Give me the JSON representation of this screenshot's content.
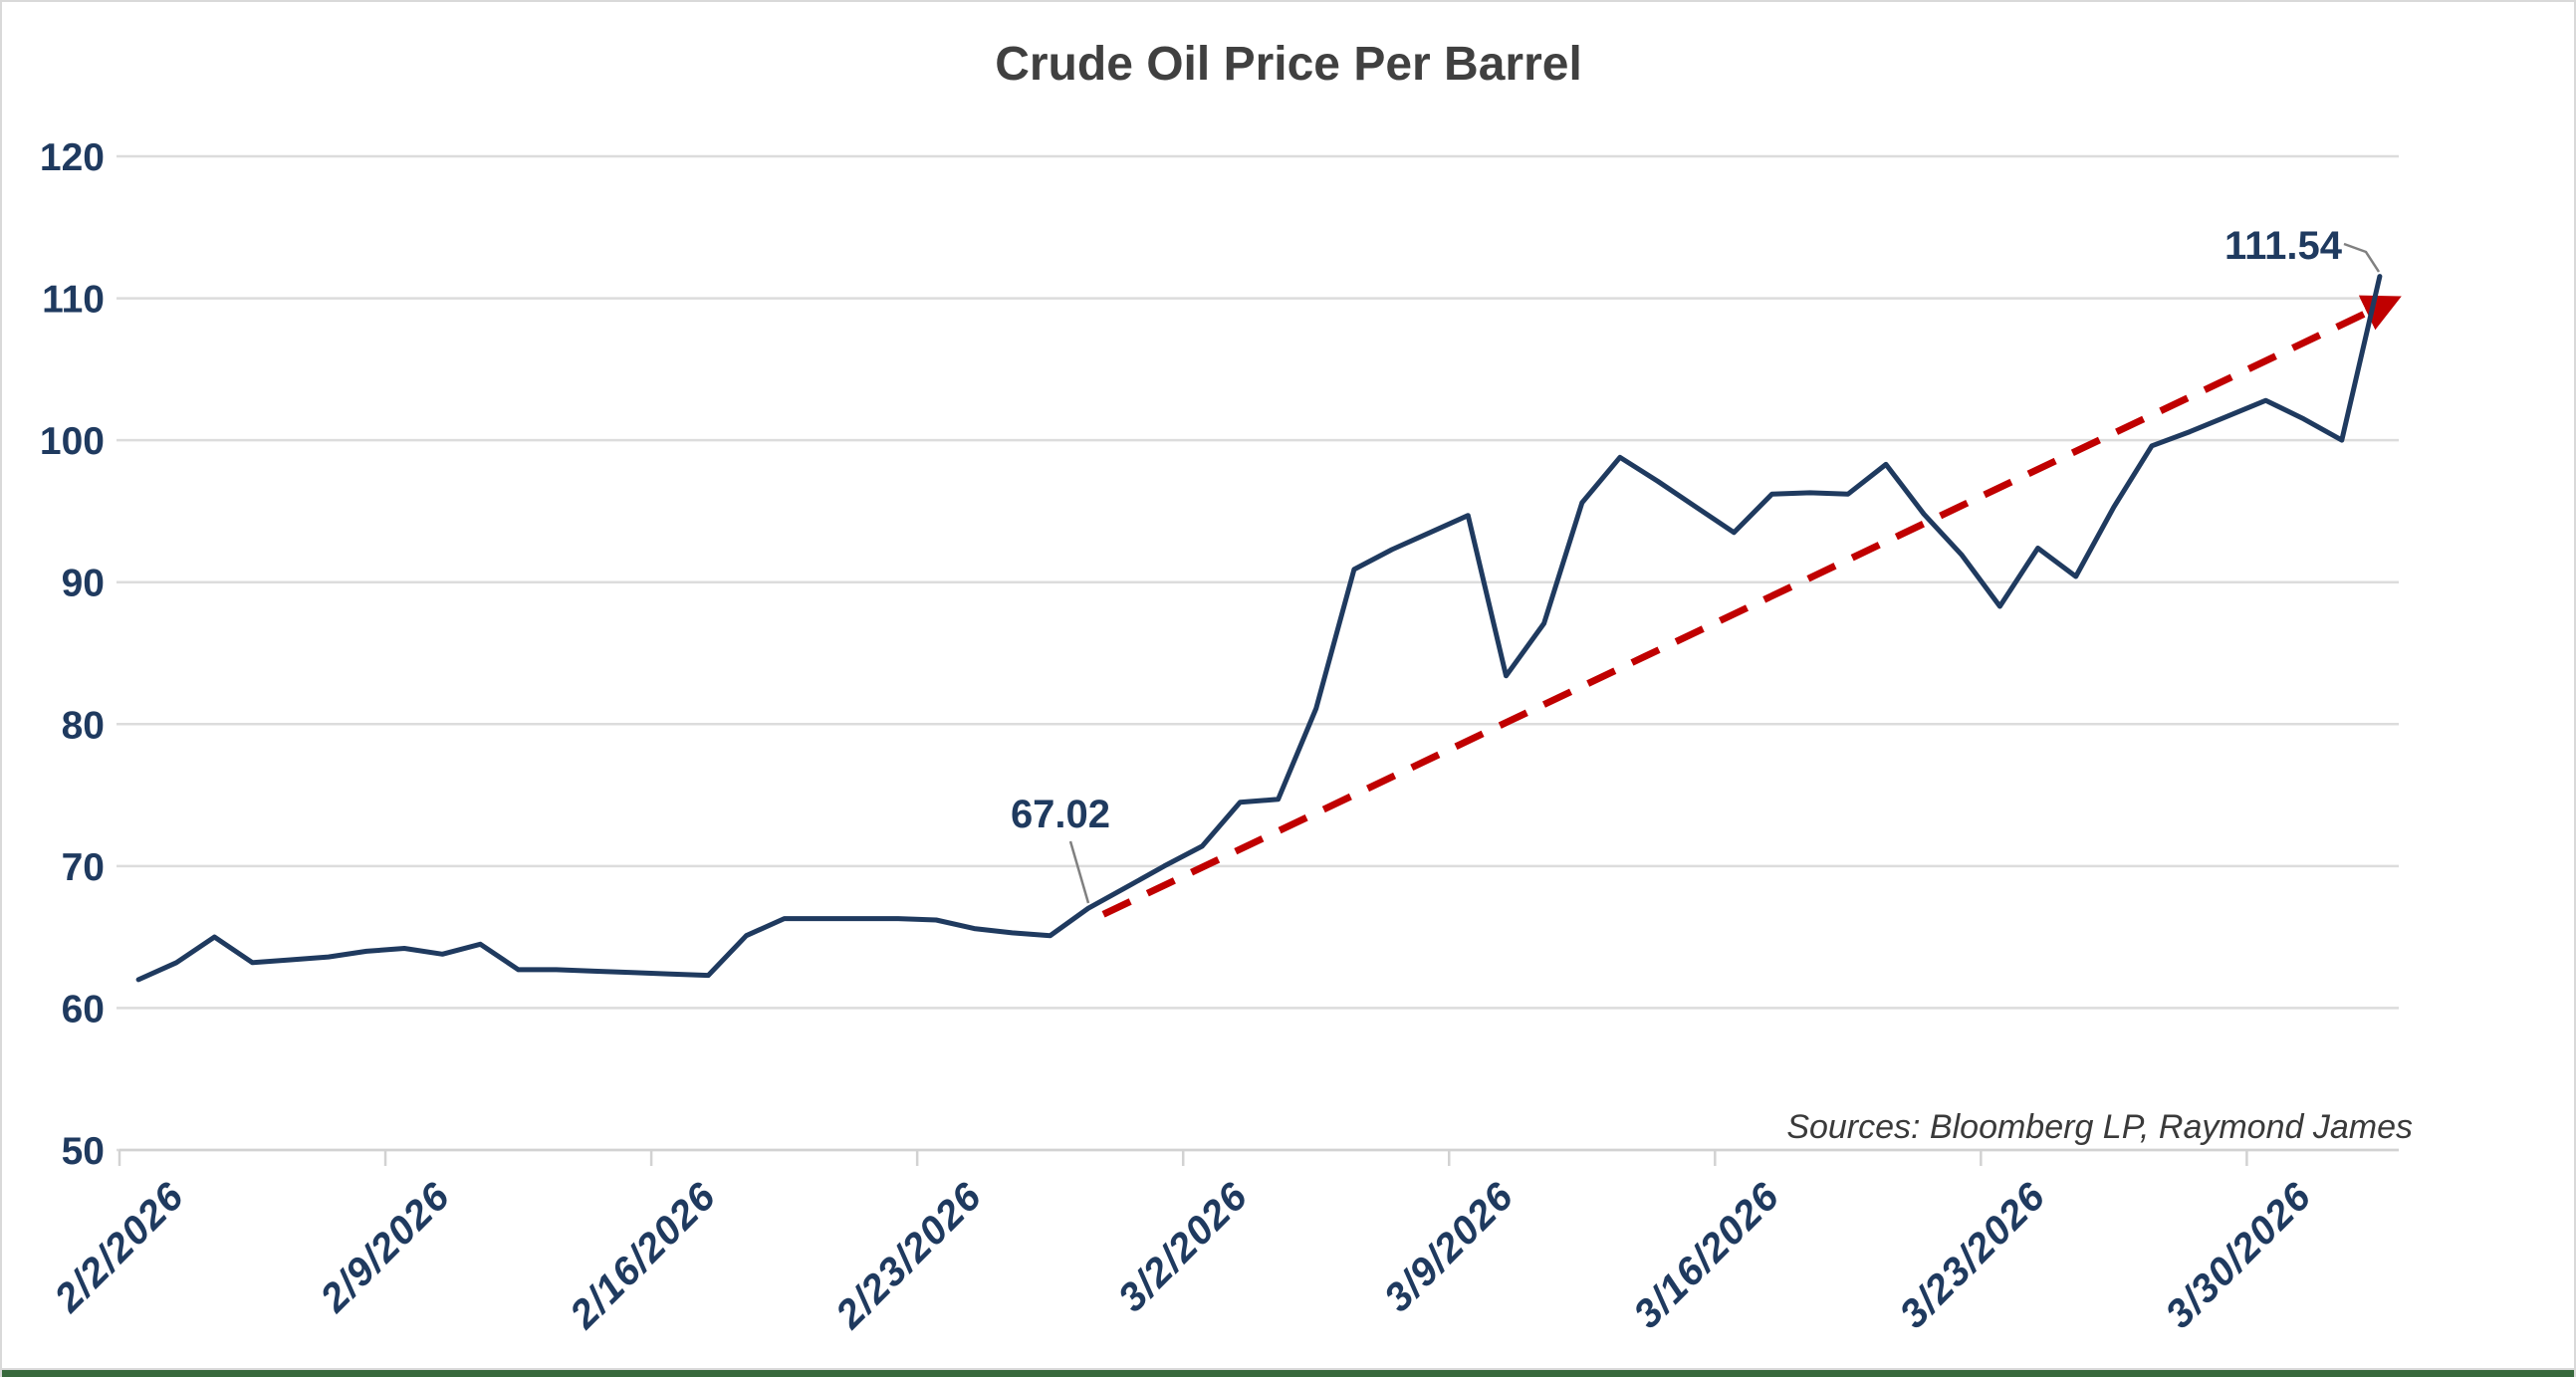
{
  "chart_data": {
    "type": "line",
    "title": "Crude Oil Price Per Barrel",
    "sources_note": "Sources: Bloomberg LP, Raymond James",
    "series_name": "Crude Oil Price Per Barrel",
    "ylim": [
      50,
      120
    ],
    "yticks": [
      50,
      60,
      70,
      80,
      90,
      100,
      110,
      120
    ],
    "grid": "horizontal",
    "legend": "none",
    "x_tick_labels": [
      {
        "label": "2/2/2026",
        "day_index": 0
      },
      {
        "label": "2/9/2026",
        "day_index": 7
      },
      {
        "label": "2/16/2026",
        "day_index": 14
      },
      {
        "label": "2/23/2026",
        "day_index": 21
      },
      {
        "label": "3/2/2026",
        "day_index": 28
      },
      {
        "label": "3/9/2026",
        "day_index": 35
      },
      {
        "label": "3/16/2026",
        "day_index": 42
      },
      {
        "label": "3/23/2026",
        "day_index": 49
      },
      {
        "label": "3/30/2026",
        "day_index": 56
      }
    ],
    "dates": [
      "2/2/2026",
      "2/3/2026",
      "2/4/2026",
      "2/5/2026",
      "2/6/2026",
      "2/7/2026",
      "2/8/2026",
      "2/9/2026",
      "2/10/2026",
      "2/11/2026",
      "2/12/2026",
      "2/13/2026",
      "2/14/2026",
      "2/15/2026",
      "2/16/2026",
      "2/17/2026",
      "2/18/2026",
      "2/19/2026",
      "2/20/2026",
      "2/21/2026",
      "2/22/2026",
      "2/23/2026",
      "2/24/2026",
      "2/25/2026",
      "2/26/2026",
      "2/27/2026",
      "2/28/2026",
      "3/1/2026",
      "3/2/2026",
      "3/3/2026",
      "3/4/2026",
      "3/5/2026",
      "3/6/2026",
      "3/7/2026",
      "3/8/2026",
      "3/9/2026",
      "3/10/2026",
      "3/11/2026",
      "3/12/2026",
      "3/13/2026",
      "3/14/2026",
      "3/15/2026",
      "3/16/2026",
      "3/17/2026",
      "3/18/2026",
      "3/19/2026",
      "3/20/2026",
      "3/21/2026",
      "3/22/2026",
      "3/23/2026",
      "3/24/2026",
      "3/25/2026",
      "3/26/2026",
      "3/27/2026",
      "3/28/2026",
      "3/29/2026",
      "3/30/2026",
      "3/31/2026",
      "4/1/2026",
      "4/2/2026"
    ],
    "values": [
      62.0,
      63.2,
      65.0,
      63.2,
      63.4,
      63.6,
      64.0,
      64.2,
      63.8,
      64.5,
      62.7,
      62.7,
      62.6,
      62.5,
      62.4,
      62.3,
      65.1,
      66.3,
      66.3,
      66.3,
      66.3,
      66.2,
      65.6,
      65.3,
      65.1,
      67.02,
      68.5,
      70.0,
      71.4,
      74.5,
      74.7,
      81.1,
      90.9,
      92.3,
      93.5,
      94.7,
      83.4,
      87.1,
      95.6,
      98.8,
      97.1,
      95.3,
      93.5,
      96.2,
      96.3,
      96.2,
      98.3,
      94.8,
      91.9,
      88.3,
      92.4,
      90.4,
      95.3,
      99.6,
      100.6,
      101.7,
      102.8,
      101.5,
      100.0,
      111.54
    ],
    "annotations": [
      {
        "text": "67.02",
        "date": "2/27/2026",
        "day_index": 25,
        "value": 67.02
      },
      {
        "text": "111.54",
        "date": "4/2/2026",
        "day_index": 59,
        "value": 111.54
      }
    ],
    "trend": {
      "style": "dashed",
      "arrow_end": true,
      "start": {
        "day_index": 25.4,
        "value": 66.6
      },
      "end": {
        "day_index": 59.3,
        "value": 109.8
      }
    },
    "colors": {
      "series": "#1f3a5f",
      "trend": "#c00000",
      "grid": "#dcdcdc",
      "axis": "#d2d2d2",
      "axis_labels": "#1f3a5f",
      "title": "#404040",
      "sources": "#3a3a3a",
      "leader": "#808080",
      "frame_border": "#d9d9d9",
      "bottom_edge": "#38693c"
    }
  }
}
